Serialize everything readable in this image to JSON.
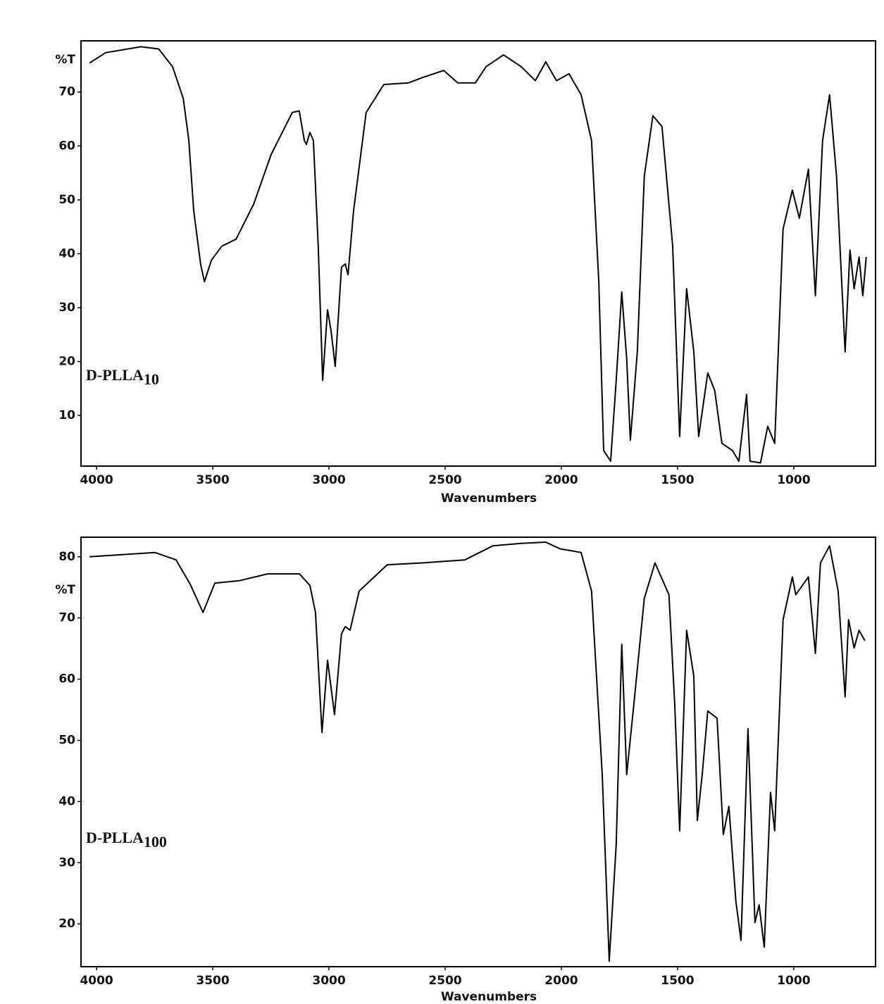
{
  "chart_data": [
    {
      "type": "line",
      "color": "#000000",
      "y_label": "%T",
      "x_label": "Wavenumbers",
      "annotation": {
        "text": "D-PLLA",
        "subscript": "10"
      },
      "xlim": [
        4067,
        648
      ],
      "xticks": [
        4000,
        3500,
        3000,
        2500,
        2000,
        1500,
        1000
      ],
      "ylim": [
        0.6,
        79.5
      ],
      "yticks": [
        10,
        20,
        30,
        40,
        50,
        60,
        70
      ],
      "x": [
        4030,
        3961,
        3809,
        3733,
        3673,
        3627,
        3603,
        3582,
        3552,
        3536,
        3506,
        3461,
        3400,
        3324,
        3249,
        3158,
        3128,
        3106,
        3097,
        3082,
        3067,
        3046,
        3027,
        3006,
        2991,
        2973,
        2946,
        2930,
        2918,
        2894,
        2840,
        2764,
        2658,
        2597,
        2506,
        2446,
        2370,
        2324,
        2249,
        2173,
        2112,
        2067,
        2021,
        1967,
        1915,
        1870,
        1839,
        1818,
        1788,
        1764,
        1740,
        1719,
        1703,
        1673,
        1643,
        1606,
        1567,
        1521,
        1491,
        1461,
        1430,
        1409,
        1370,
        1340,
        1309,
        1264,
        1236,
        1203,
        1188,
        1143,
        1112,
        1082,
        1046,
        1006,
        976,
        937,
        907,
        876,
        846,
        816,
        779,
        758,
        740,
        719,
        703,
        688
      ],
      "values": [
        75.4,
        77.3,
        78.4,
        78,
        74.7,
        68.8,
        61,
        48,
        38,
        34.8,
        38.8,
        41.4,
        42.7,
        49.2,
        58.4,
        66.2,
        66.5,
        61,
        60.3,
        62.5,
        61,
        41.4,
        16.5,
        29.6,
        25.7,
        19.1,
        37.5,
        38.1,
        36.1,
        48,
        66.2,
        71.4,
        71.7,
        72.7,
        74,
        71.7,
        71.7,
        74.7,
        76.9,
        74.7,
        72.1,
        75.6,
        72.1,
        73.4,
        69.5,
        61,
        34.8,
        3.5,
        1.5,
        16.5,
        32.9,
        20.5,
        5.4,
        21.8,
        54.4,
        65.6,
        63.6,
        41.4,
        6.1,
        33.5,
        21.8,
        6.1,
        17.9,
        14.6,
        4.8,
        3.5,
        1.5,
        13.9,
        1.5,
        1.2,
        8,
        4.8,
        44.6,
        51.8,
        46.6,
        55.7,
        32.2,
        61,
        69.5,
        54.4,
        21.8,
        40.7,
        33.5,
        39.4,
        32.2,
        39.4
      ]
    },
    {
      "type": "line",
      "color": "#000000",
      "y_label": "%T",
      "x_label": "Wavenumbers",
      "annotation": {
        "text": "D-PLLA",
        "subscript": "100"
      },
      "xlim": [
        4067,
        648
      ],
      "xticks": [
        4000,
        3500,
        3000,
        2500,
        2000,
        1500,
        1000
      ],
      "ylim": [
        13,
        83.2
      ],
      "yticks": [
        20,
        30,
        40,
        50,
        60,
        70,
        80
      ],
      "x": [
        4030,
        3749,
        3658,
        3597,
        3542,
        3491,
        3385,
        3264,
        3127,
        3082,
        3058,
        3030,
        3006,
        2976,
        2946,
        2930,
        2909,
        2870,
        2749,
        2597,
        2415,
        2294,
        2173,
        2067,
        2006,
        1915,
        1870,
        1824,
        1794,
        1764,
        1740,
        1719,
        1688,
        1643,
        1597,
        1537,
        1512,
        1491,
        1461,
        1430,
        1415,
        1394,
        1370,
        1330,
        1303,
        1279,
        1249,
        1227,
        1197,
        1167,
        1149,
        1127,
        1100,
        1082,
        1046,
        1006,
        991,
        937,
        907,
        885,
        846,
        809,
        779,
        764,
        740,
        719,
        694
      ],
      "values": [
        80,
        80.7,
        79.5,
        75.5,
        70.9,
        75.7,
        76.1,
        77.2,
        77.2,
        75.3,
        70.9,
        51.3,
        63.1,
        54.2,
        67.4,
        68.6,
        68,
        74.4,
        78.7,
        79,
        79.5,
        81.8,
        82.2,
        82.4,
        81.3,
        80.7,
        74.4,
        44.4,
        13.9,
        32.9,
        65.7,
        44.4,
        55.9,
        73.2,
        79,
        73.8,
        55.9,
        35.2,
        68,
        60.5,
        36.9,
        44.4,
        54.8,
        53.6,
        34.6,
        39.2,
        23.7,
        17.3,
        51.9,
        20.2,
        23.1,
        16.2,
        41.5,
        35.2,
        69.7,
        76.7,
        73.8,
        76.7,
        64.2,
        79,
        81.8,
        74.4,
        57.1,
        69.7,
        65.1,
        68,
        66.3
      ]
    }
  ]
}
